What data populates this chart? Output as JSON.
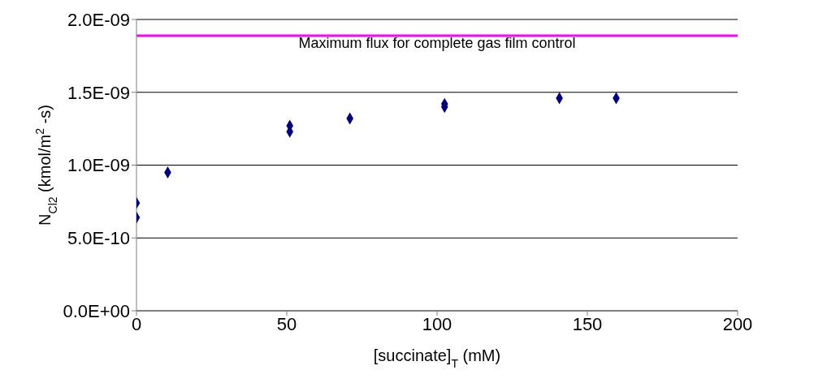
{
  "chart_data": {
    "type": "scatter",
    "xlabel": "[succinate]$_{T}$ (mM)",
    "ylabel": "N$_{Cl2}$ (kmol/m$^{2}$-s)",
    "x": [
      0,
      0,
      10.4,
      51,
      51,
      71,
      102.5,
      102.5,
      140.7,
      159.6
    ],
    "series": [
      {
        "color": "#000080",
        "values": [
          7.4e-10,
          6.4e-10,
          9.5e-10,
          1.27e-09,
          1.23e-09,
          1.32e-09,
          1.42e-09,
          1.4e-09,
          1.46e-09,
          1.46e-09
        ]
      }
    ],
    "xlim": [
      0,
      200
    ],
    "xticks": [
      0,
      50,
      100,
      150,
      200
    ],
    "ylim": [
      0,
      2e-09
    ],
    "yticks": [
      {
        "value": 0,
        "label": "0.0E+00"
      },
      {
        "value": 5e-10,
        "label": "5.0E-10"
      },
      {
        "value": 1e-09,
        "label": "1.0E-09"
      },
      {
        "value": 1.5e-09,
        "label": "1.5E-09"
      },
      {
        "value": 2e-09,
        "label": "2.0E-09"
      }
    ],
    "grid": "y",
    "marker": "diamond",
    "ref_lines": [
      {
        "axis": "y",
        "value": 1.888e-09,
        "label": "Maximum flux for complete gas film control",
        "color": "#ff00ff"
      }
    ]
  }
}
